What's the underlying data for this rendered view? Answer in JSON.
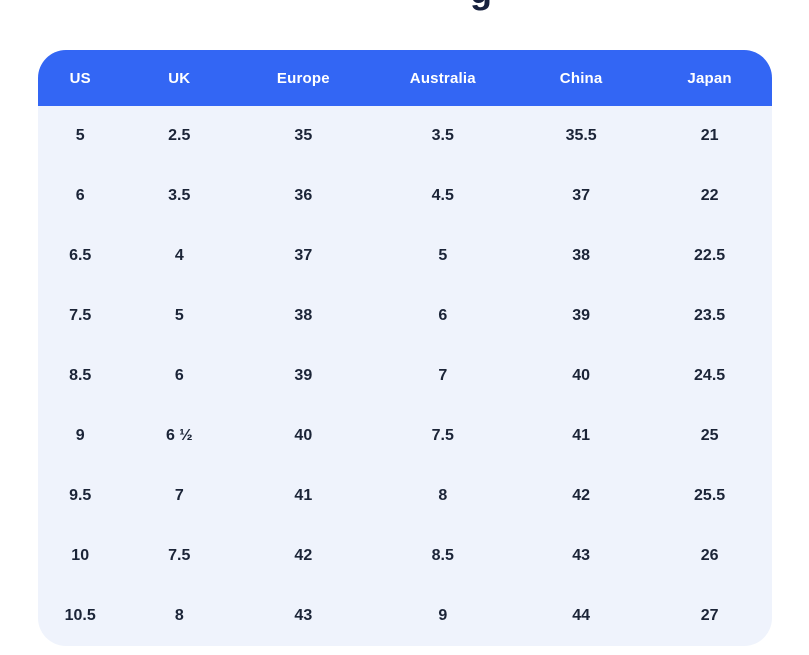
{
  "title": {
    "visible_fragment": "g"
  },
  "colors": {
    "header_bg": "#3366f4",
    "header_text": "#ffffff",
    "body_bg": "#eff3fc",
    "body_text": "#1b2437",
    "title_text": "#16213e"
  },
  "chart_data": {
    "type": "table",
    "title": "",
    "columns": [
      "US",
      "UK",
      "Europe",
      "Australia",
      "China",
      "Japan"
    ],
    "rows": [
      [
        "5",
        "2.5",
        "35",
        "3.5",
        "35.5",
        "21"
      ],
      [
        "6",
        "3.5",
        "36",
        "4.5",
        "37",
        "22"
      ],
      [
        "6.5",
        "4",
        "37",
        "5",
        "38",
        "22.5"
      ],
      [
        "7.5",
        "5",
        "38",
        "6",
        "39",
        "23.5"
      ],
      [
        "8.5",
        "6",
        "39",
        "7",
        "40",
        "24.5"
      ],
      [
        "9",
        "6 ½",
        "40",
        "7.5",
        "41",
        "25"
      ],
      [
        "9.5",
        "7",
        "41",
        "8",
        "42",
        "25.5"
      ],
      [
        "10",
        "7.5",
        "42",
        "8.5",
        "43",
        "26"
      ],
      [
        "10.5",
        "8",
        "43",
        "9",
        "44",
        "27"
      ]
    ],
    "layout": {
      "header_position": "top",
      "grid": false,
      "zebra_striping": false
    }
  }
}
